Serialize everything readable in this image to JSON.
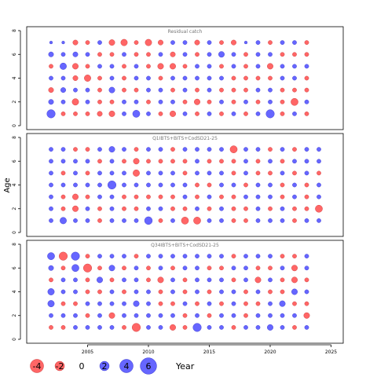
{
  "chart_data": {
    "type": "bubble",
    "ylabel": "Age",
    "legend_title": "Year",
    "colors": {
      "positive": "#6666ff",
      "negative": "#ff6666",
      "stroke_pos": "#3333cc",
      "stroke_neg": "#cc3333"
    },
    "xlim": [
      2000,
      2026
    ],
    "ylim": [
      0,
      8
    ],
    "x_ticks": [
      2005,
      2010,
      2015,
      2020,
      2025
    ],
    "y_ticks": [
      0,
      2,
      4,
      6,
      8
    ],
    "legend": [
      {
        "value": -4,
        "label": "-4"
      },
      {
        "value": -2,
        "label": "-2"
      },
      {
        "value": 0,
        "label": "0"
      },
      {
        "value": 2,
        "label": "2"
      },
      {
        "value": 4,
        "label": "4"
      },
      {
        "value": 6,
        "label": "6"
      }
    ],
    "panels": [
      {
        "title": "Residual catch",
        "years": [
          2002,
          2003,
          2004,
          2005,
          2006,
          2007,
          2008,
          2009,
          2010,
          2011,
          2012,
          2013,
          2014,
          2015,
          2016,
          2017,
          2018,
          2019,
          2020,
          2021,
          2022,
          2023
        ],
        "ages": [
          1,
          2,
          3,
          4,
          5,
          6,
          7
        ],
        "residuals": [
          [
            4.0,
            1.5,
            -1.5,
            1.0,
            -1.0,
            1.5,
            0.5
          ],
          [
            -1.0,
            1.0,
            1.5,
            1.0,
            2.5,
            1.0,
            0.5
          ],
          [
            -1.0,
            -2.5,
            1.0,
            -1.5,
            -2.0,
            1.5,
            -1.5
          ],
          [
            -1.0,
            1.0,
            1.0,
            -2.5,
            -1.0,
            1.0,
            -1.0
          ],
          [
            -1.5,
            -1.0,
            -1.0,
            -1.0,
            1.0,
            -1.0,
            1.0
          ],
          [
            -2.0,
            -1.0,
            2.0,
            1.0,
            1.0,
            -1.0,
            -2.0
          ],
          [
            1.0,
            1.0,
            -1.0,
            -1.0,
            -1.0,
            1.0,
            -2.5
          ],
          [
            3.0,
            1.0,
            -1.0,
            1.0,
            1.0,
            -1.0,
            -1.0
          ],
          [
            1.0,
            -1.0,
            1.0,
            1.0,
            -1.0,
            -1.0,
            -2.5
          ],
          [
            -1.0,
            1.0,
            1.0,
            -1.0,
            -2.0,
            1.0,
            -1.5
          ],
          [
            -2.0,
            1.0,
            -1.0,
            1.0,
            -2.0,
            -1.5,
            1.0
          ],
          [
            1.0,
            -1.0,
            1.0,
            1.0,
            -1.0,
            1.0,
            1.0
          ],
          [
            -1.0,
            -2.0,
            -1.0,
            1.0,
            1.0,
            -1.0,
            -1.5
          ],
          [
            1.0,
            -1.0,
            1.0,
            1.0,
            1.0,
            1.0,
            1.0
          ],
          [
            -1.0,
            1.0,
            -1.0,
            1.0,
            -1.0,
            2.0,
            -1.0
          ],
          [
            1.0,
            -1.0,
            -1.0,
            -1.0,
            1.0,
            1.0,
            -1.5
          ],
          [
            -1.0,
            1.0,
            -1.0,
            -1.0,
            -1.0,
            -1.0,
            0.5
          ],
          [
            1.0,
            -1.0,
            1.0,
            -1.0,
            1.0,
            1.0,
            1.0
          ],
          [
            4.0,
            1.0,
            1.0,
            -1.0,
            -2.0,
            1.0,
            -1.0
          ],
          [
            -1.0,
            -1.0,
            -1.0,
            1.0,
            1.0,
            -1.0,
            1.0
          ],
          [
            1.0,
            -3.0,
            -1.0,
            1.0,
            1.0,
            -1.0,
            1.0
          ],
          [
            -1.0,
            1.0,
            -1.0,
            -1.0,
            1.0,
            -1.0,
            -1.0
          ]
        ]
      },
      {
        "title": "Q1IBTS+BITS+CodSD21-25",
        "years": [
          2002,
          2003,
          2004,
          2005,
          2006,
          2007,
          2008,
          2009,
          2010,
          2011,
          2012,
          2013,
          2014,
          2015,
          2016,
          2017,
          2018,
          2019,
          2020,
          2021,
          2022,
          2023,
          2024
        ],
        "ages": [
          1,
          2,
          3,
          4,
          5,
          6,
          7
        ],
        "residuals": [
          [
            1.0,
            1.0,
            1.0,
            1.0,
            1.0,
            1.0,
            1.0
          ],
          [
            2.5,
            -1.0,
            -1.0,
            1.0,
            -1.0,
            1.0,
            1.0
          ],
          [
            1.0,
            -2.0,
            -2.0,
            1.0,
            1.0,
            1.0,
            -1.0
          ],
          [
            1.0,
            1.0,
            -1.0,
            1.0,
            -1.0,
            1.0,
            -1.0
          ],
          [
            -1.0,
            -1.0,
            1.0,
            1.0,
            1.0,
            -1.0,
            1.0
          ],
          [
            1.0,
            1.0,
            1.0,
            4.0,
            1.0,
            1.0,
            2.0
          ],
          [
            1.0,
            -1.0,
            -1.0,
            1.0,
            1.0,
            -1.0,
            1.0
          ],
          [
            1.0,
            -1.0,
            -1.0,
            1.0,
            -2.5,
            -2.0,
            -1.0
          ],
          [
            3.5,
            1.0,
            -1.0,
            1.0,
            1.0,
            -1.0,
            1.0
          ],
          [
            -1.0,
            1.0,
            -1.0,
            1.0,
            1.0,
            -1.0,
            1.0
          ],
          [
            1.0,
            -1.0,
            -1.0,
            1.0,
            1.0,
            -1.0,
            -1.0
          ],
          [
            -3.0,
            -1.0,
            1.0,
            1.0,
            -1.0,
            -1.0,
            1.0
          ],
          [
            -3.0,
            1.0,
            -1.0,
            -1.0,
            1.0,
            1.0,
            1.0
          ],
          [
            1.0,
            -1.0,
            1.0,
            -1.0,
            1.0,
            -1.0,
            1.0
          ],
          [
            1.0,
            1.0,
            -1.0,
            1.0,
            1.0,
            -1.0,
            1.0
          ],
          [
            -1.0,
            -1.0,
            -1.0,
            1.0,
            -1.0,
            -1.0,
            -3.0
          ],
          [
            -1.0,
            -1.0,
            1.0,
            -1.0,
            1.0,
            1.0,
            1.0
          ],
          [
            1.0,
            1.0,
            1.0,
            1.0,
            -1.0,
            -1.0,
            1.0
          ],
          [
            1.0,
            -1.0,
            1.0,
            1.0,
            -1.0,
            1.0,
            -1.0
          ],
          [
            1.0,
            1.0,
            -1.0,
            -1.0,
            1.0,
            -1.0,
            1.0
          ],
          [
            -1.0,
            -1.0,
            1.0,
            1.0,
            -1.0,
            1.0,
            -1.0
          ],
          [
            1.0,
            -1.0,
            -1.0,
            -1.0,
            1.0,
            1.0,
            1.0
          ],
          [
            1.0,
            -3.0,
            1.0,
            1.0,
            -1.0,
            1.0,
            1.0
          ]
        ]
      },
      {
        "title": "Q34IBTS+BITS+CodSD21-25",
        "years": [
          2002,
          2003,
          2004,
          2005,
          2006,
          2007,
          2008,
          2009,
          2010,
          2011,
          2012,
          2013,
          2014,
          2015,
          2016,
          2017,
          2018,
          2019,
          2020,
          2021,
          2022,
          2023
        ],
        "ages": [
          1,
          2,
          3,
          4,
          5,
          6,
          7
        ],
        "residuals": [
          [
            -1.0,
            1.0,
            2.5,
            2.5,
            -1.0,
            1.5,
            3.0
          ],
          [
            -1.0,
            1.0,
            -1.0,
            1.0,
            1.0,
            -1.0,
            -4.0
          ],
          [
            1.0,
            1.0,
            -1.0,
            1.0,
            1.0,
            3.0,
            4.0
          ],
          [
            1.0,
            -1.0,
            1.0,
            -1.0,
            -1.0,
            -4.0,
            -1.0
          ],
          [
            1.0,
            1.0,
            1.0,
            -1.0,
            2.0,
            -1.0,
            1.0
          ],
          [
            1.0,
            -2.0,
            1.0,
            1.0,
            -1.0,
            2.0,
            1.0
          ],
          [
            -1.0,
            1.0,
            1.0,
            -1.0,
            1.0,
            -1.0,
            1.0
          ],
          [
            -4.0,
            1.0,
            2.0,
            1.0,
            1.0,
            1.0,
            -1.0
          ],
          [
            1.0,
            1.0,
            1.0,
            1.0,
            -1.0,
            -1.0,
            1.0
          ],
          [
            1.0,
            1.0,
            -1.0,
            -1.0,
            -2.0,
            1.0,
            1.0
          ],
          [
            -2.0,
            1.0,
            -1.0,
            1.0,
            1.0,
            -1.0,
            1.0
          ],
          [
            -1.0,
            -1.0,
            1.0,
            -1.0,
            -1.0,
            1.0,
            1.0
          ],
          [
            4.0,
            1.0,
            -1.0,
            1.0,
            1.0,
            1.0,
            1.0
          ],
          [
            1.0,
            -1.0,
            1.0,
            -1.0,
            1.0,
            -1.0,
            1.0
          ],
          [
            1.0,
            1.0,
            -1.0,
            1.0,
            1.0,
            -1.0,
            1.0
          ],
          [
            -1.0,
            1.0,
            1.0,
            1.0,
            -1.0,
            1.0,
            -1.0
          ],
          [
            1.0,
            -1.0,
            -1.0,
            -1.0,
            1.0,
            1.0,
            1.0
          ],
          [
            1.0,
            1.0,
            -1.0,
            1.0,
            -2.0,
            -1.0,
            1.0
          ],
          [
            2.0,
            1.0,
            1.0,
            -1.0,
            1.0,
            -1.0,
            1.0
          ],
          [
            1.0,
            1.0,
            2.0,
            -1.0,
            -1.0,
            1.0,
            -1.0
          ],
          [
            -1.0,
            1.0,
            -1.0,
            2.0,
            -2.0,
            -2.0,
            -1.0
          ],
          [
            1.0,
            -2.0,
            -1.0,
            1.0,
            -1.0,
            1.0,
            1.0
          ]
        ]
      }
    ]
  }
}
